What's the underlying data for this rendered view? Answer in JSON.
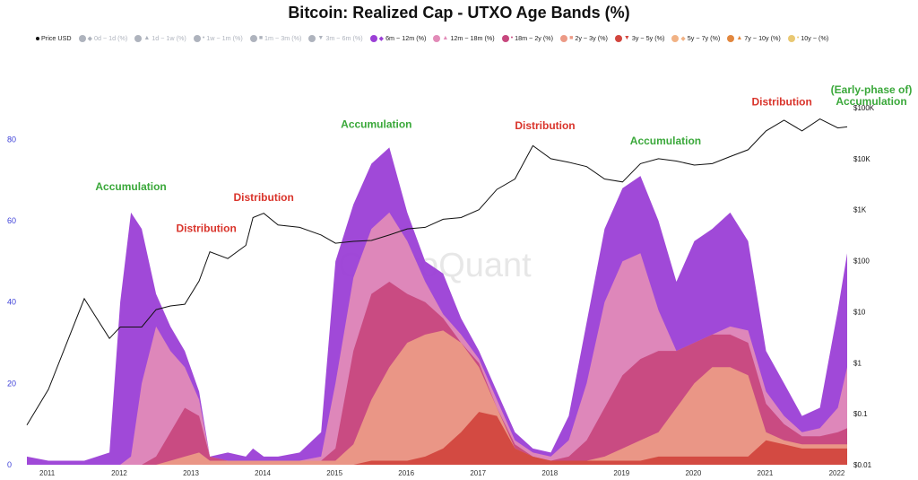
{
  "title": "Bitcoin: Realized Cap - UTXO Age Bands (%)",
  "watermark": "CryptoQuant",
  "legend": [
    {
      "label": "Price USD",
      "color": "#111111",
      "mark": "•",
      "active": true
    },
    {
      "label": "0d ~ 1d (%)",
      "color": "#aeb3bd",
      "mark": "◆",
      "active": false
    },
    {
      "label": "1d ~ 1w (%)",
      "color": "#aeb3bd",
      "mark": "▲",
      "active": false
    },
    {
      "label": "1w ~ 1m (%)",
      "color": "#aeb3bd",
      "mark": "•",
      "active": false
    },
    {
      "label": "1m ~ 3m (%)",
      "color": "#aeb3bd",
      "mark": "■",
      "active": false
    },
    {
      "label": "3m ~ 6m (%)",
      "color": "#aeb3bd",
      "mark": "▼",
      "active": false
    },
    {
      "label": "6m ~ 12m (%)",
      "color": "#9b3fd6",
      "mark": "◆",
      "active": true
    },
    {
      "label": "12m ~ 18m (%)",
      "color": "#e28bb8",
      "mark": "▲",
      "active": true
    },
    {
      "label": "18m ~ 2y (%)",
      "color": "#c7487e",
      "mark": "•",
      "active": true
    },
    {
      "label": "2y ~ 3y (%)",
      "color": "#ec9a86",
      "mark": "■",
      "active": true
    },
    {
      "label": "3y ~ 5y (%)",
      "color": "#d2463e",
      "mark": "▼",
      "active": true
    },
    {
      "label": "5y ~ 7y (%)",
      "color": "#f1b285",
      "mark": "◆",
      "active": true
    },
    {
      "label": "7y ~ 10y (%)",
      "color": "#e2873e",
      "mark": "▲",
      "active": true
    },
    {
      "label": "10y ~ (%)",
      "color": "#e9c873",
      "mark": "•",
      "active": true
    }
  ],
  "annotations": [
    {
      "text": "Accumulation",
      "color": "#3aa83a",
      "x_year": 2012.15,
      "pct": 67.5
    },
    {
      "text": "Distribution",
      "color": "#d9342b",
      "x_year": 2013.2,
      "pct": 57.2
    },
    {
      "text": "Distribution",
      "color": "#d9342b",
      "x_year": 213.0,
      "pct": 64.8
    },
    {
      "text": "Accumulation",
      "color": "#3aa83a",
      "x_year": 2015.57,
      "pct": 82.8
    },
    {
      "text": "Distribution",
      "color": "#d9342b",
      "x_year": 2017.92,
      "pct": 82.5
    },
    {
      "text": "Accumulation",
      "color": "#3aa83a",
      "x_year": 2019.6,
      "pct": 78.7
    },
    {
      "text": "Distribution",
      "color": "#d9342b",
      "x_year": 2021.22,
      "pct": 88.3
    }
  ],
  "right_title_lines": [
    "(Early-phase of)",
    "Accumulation"
  ],
  "right_title_color": "#3aa83a",
  "chart_data": {
    "type": "area",
    "xlabel": "",
    "ylabel": "",
    "x": [
      2010.7,
      2011.0,
      2011.5,
      2011.85,
      2012.0,
      2012.15,
      2012.3,
      2012.5,
      2012.7,
      2012.9,
      2013.1,
      2013.25,
      2013.5,
      2013.75,
      2013.85,
      2014.0,
      2014.2,
      2014.5,
      2014.8,
      2015.0,
      2015.25,
      2015.5,
      2015.75,
      2016.0,
      2016.25,
      2016.5,
      2016.75,
      2017.0,
      2017.25,
      2017.5,
      2017.75,
      2018.0,
      2018.25,
      2018.5,
      2018.75,
      2019.0,
      2019.25,
      2019.5,
      2019.75,
      2020.0,
      2020.25,
      2020.5,
      2020.75,
      2021.0,
      2021.25,
      2021.5,
      2021.75,
      2022.0,
      2022.13
    ],
    "x_ticks": [
      "2011",
      "2012",
      "2013",
      "2014",
      "2015",
      "2016",
      "2017",
      "2018",
      "2019",
      "2020",
      "2021",
      "2022"
    ],
    "x_tick_years": [
      2011,
      2012,
      2013,
      2014,
      2015,
      2016,
      2017,
      2018,
      2019,
      2020,
      2021,
      2022
    ],
    "y_left_ticks": [
      0,
      20,
      40,
      60,
      80
    ],
    "y_left_range": [
      0,
      90
    ],
    "y_right_ticks": [
      "$0.01",
      "$0.1",
      "$1",
      "$10",
      "$100",
      "$1K",
      "$10K",
      "$100K"
    ],
    "y_right_log_range": [
      0.01,
      150000
    ],
    "series": [
      {
        "name": "6m ~ 12m (%)",
        "color": "#9b3fd6",
        "values": [
          2,
          1,
          1,
          3,
          40,
          62,
          58,
          42,
          34,
          28,
          18,
          2,
          3,
          2,
          4,
          2,
          2,
          3,
          8,
          50,
          64,
          74,
          78,
          62,
          50,
          47,
          36,
          28,
          18,
          8,
          4,
          3,
          12,
          35,
          58,
          68,
          71,
          60,
          45,
          55,
          58,
          62,
          55,
          28,
          20,
          12,
          14,
          38,
          52
        ]
      },
      {
        "name": "12m ~ 18m (%)",
        "color": "#e28bb8",
        "values": [
          0,
          0,
          0,
          0,
          0,
          2,
          20,
          34,
          28,
          24,
          16,
          2,
          1,
          1,
          1,
          1,
          1,
          1,
          2,
          20,
          46,
          58,
          62,
          55,
          45,
          37,
          32,
          26,
          16,
          6,
          3,
          2,
          6,
          20,
          40,
          50,
          52,
          38,
          28,
          30,
          32,
          34,
          33,
          18,
          12,
          8,
          9,
          14,
          24
        ]
      },
      {
        "name": "18m ~ 2y (%)",
        "color": "#c7487e",
        "values": [
          0,
          0,
          0,
          0,
          0,
          0,
          0,
          2,
          8,
          14,
          12,
          2,
          1,
          1,
          1,
          1,
          1,
          1,
          1,
          4,
          28,
          42,
          45,
          42,
          40,
          36,
          30,
          25,
          14,
          5,
          2,
          1,
          2,
          6,
          14,
          22,
          26,
          28,
          28,
          30,
          32,
          32,
          30,
          15,
          10,
          7,
          7,
          8,
          9
        ]
      },
      {
        "name": "2y ~ 3y (%)",
        "color": "#ec9a86",
        "values": [
          0,
          0,
          0,
          0,
          0,
          0,
          0,
          0,
          1,
          2,
          3,
          1,
          1,
          1,
          1,
          1,
          1,
          1,
          1,
          1,
          5,
          16,
          24,
          30,
          32,
          33,
          30,
          24,
          14,
          4,
          2,
          1,
          1,
          1,
          2,
          4,
          6,
          8,
          14,
          20,
          24,
          24,
          22,
          8,
          6,
          5,
          5,
          5,
          5
        ]
      },
      {
        "name": "3y ~ 5y (%)",
        "color": "#d2463e",
        "values": [
          0,
          0,
          0,
          0,
          0,
          0,
          0,
          0,
          0,
          0,
          0,
          0,
          0,
          0,
          0,
          0,
          0,
          0,
          0,
          0,
          0,
          1,
          1,
          1,
          2,
          4,
          8,
          13,
          12,
          4,
          2,
          1,
          1,
          1,
          1,
          1,
          1,
          2,
          2,
          2,
          2,
          2,
          2,
          6,
          5,
          4,
          4,
          4,
          4
        ]
      }
    ],
    "price_usd": [
      0.06,
      0.3,
      18,
      3,
      5,
      5,
      5,
      11,
      13,
      14,
      40,
      150,
      110,
      200,
      700,
      850,
      500,
      450,
      320,
      220,
      240,
      250,
      320,
      420,
      450,
      650,
      700,
      1000,
      2500,
      4000,
      18000,
      10000,
      8500,
      7000,
      4000,
      3500,
      8000,
      10000,
      9000,
      7500,
      8000,
      11000,
      15000,
      35000,
      57000,
      35000,
      60000,
      40000,
      42000
    ]
  }
}
